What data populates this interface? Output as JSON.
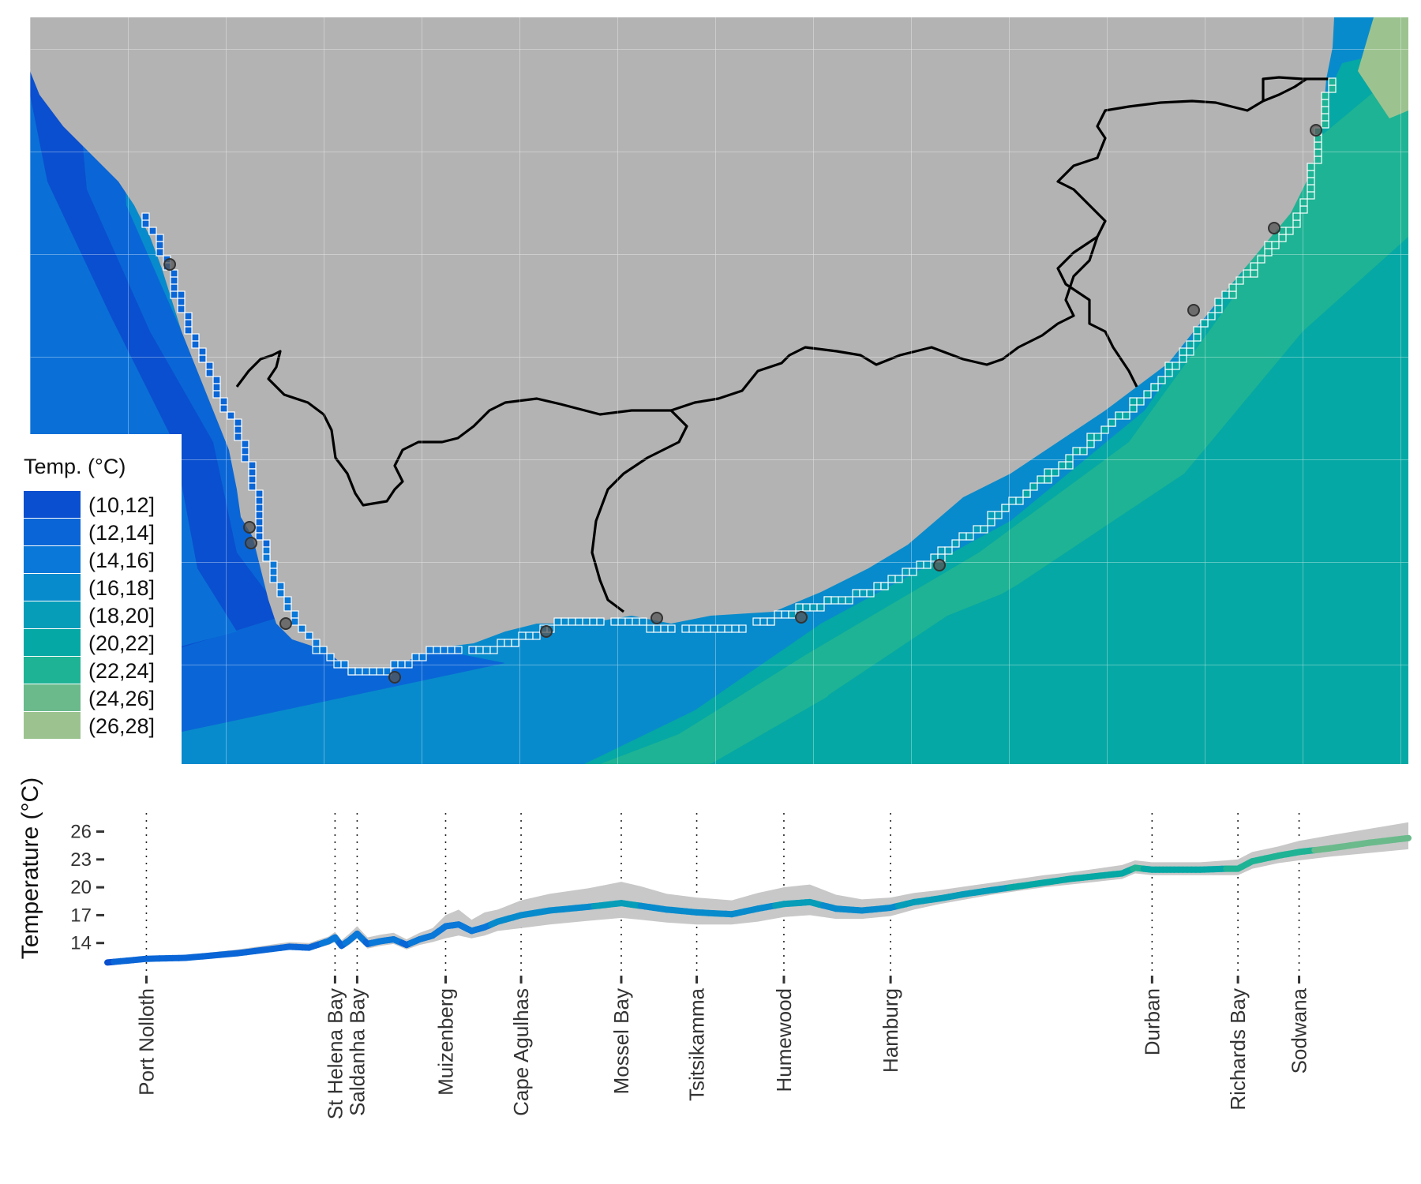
{
  "map": {
    "legend": {
      "title": "Temp. (°C)",
      "bins": [
        {
          "label": "(10,12]",
          "color": "#0a4fcf"
        },
        {
          "label": "(12,14]",
          "color": "#0a66d6"
        },
        {
          "label": "(14,16]",
          "color": "#0a78d8"
        },
        {
          "label": "(16,18]",
          "color": "#088bcc"
        },
        {
          "label": "(18,20]",
          "color": "#069db8"
        },
        {
          "label": "(20,22]",
          "color": "#05a8a4"
        },
        {
          "label": "(22,24]",
          "color": "#1eb394"
        },
        {
          "label": "(24,26]",
          "color": "#6aba8c"
        },
        {
          "label": "(26,28]",
          "color": "#9cc38f"
        }
      ]
    },
    "land_color": "#b3b3b3",
    "border_color": "#000000",
    "site_marker_color": "#555555"
  },
  "chart_data": {
    "type": "line",
    "ylabel": "Temperature (°C)",
    "yticks": [
      14,
      17,
      20,
      23,
      26
    ],
    "ylim": [
      11.0,
      28.0
    ],
    "xlim": [
      0,
      100
    ],
    "locations": [
      {
        "name": "Port Nolloth",
        "x": 3.0
      },
      {
        "name": "St Helena Bay",
        "x": 17.5
      },
      {
        "name": "Saldanha Bay",
        "x": 19.2
      },
      {
        "name": "Muizenberg",
        "x": 26.0
      },
      {
        "name": "Cape Agulhas",
        "x": 31.8
      },
      {
        "name": "Mossel Bay",
        "x": 39.5
      },
      {
        "name": "Tsitsikamma",
        "x": 45.3
      },
      {
        "name": "Humewood",
        "x": 52.0
      },
      {
        "name": "Hamburg",
        "x": 60.2
      },
      {
        "name": "Durban",
        "x": 80.3
      },
      {
        "name": "Richards Bay",
        "x": 86.9
      },
      {
        "name": "Sodwana",
        "x": 91.6
      }
    ],
    "series": [
      {
        "x": [
          0,
          3,
          6,
          10,
          14,
          15.5,
          17,
          17.5,
          18,
          18.6,
          19.2,
          20,
          21,
          22,
          23,
          24,
          25,
          26,
          27,
          28,
          29,
          30,
          31.8,
          34,
          37,
          39.5,
          41,
          43,
          45.3,
          48,
          50,
          52,
          54,
          56,
          58,
          60.2,
          62,
          64,
          66,
          68,
          70,
          72,
          74,
          76,
          78,
          79,
          80.3,
          82,
          84,
          86,
          86.9,
          88,
          90,
          91.6,
          94,
          97,
          100
        ],
        "mean": [
          11.9,
          12.3,
          12.4,
          12.9,
          13.6,
          13.5,
          14.2,
          14.6,
          13.7,
          14.3,
          15.0,
          13.9,
          14.2,
          14.4,
          13.8,
          14.4,
          14.8,
          15.8,
          16.0,
          15.3,
          15.7,
          16.3,
          17.0,
          17.5,
          17.9,
          18.3,
          18.0,
          17.6,
          17.3,
          17.1,
          17.7,
          18.2,
          18.4,
          17.7,
          17.5,
          17.8,
          18.4,
          18.8,
          19.3,
          19.7,
          20.1,
          20.5,
          20.9,
          21.2,
          21.5,
          22.1,
          21.9,
          21.9,
          21.9,
          22.0,
          22.0,
          22.8,
          23.4,
          23.8,
          24.2,
          24.8,
          25.3
        ],
        "lower": [
          11.7,
          12.0,
          12.2,
          12.6,
          13.3,
          13.2,
          13.8,
          14.1,
          13.3,
          13.8,
          14.5,
          13.4,
          13.7,
          13.9,
          13.3,
          13.8,
          14.1,
          14.5,
          14.8,
          14.5,
          14.8,
          15.3,
          15.6,
          16.0,
          16.4,
          16.7,
          16.5,
          16.2,
          16.0,
          16.0,
          16.3,
          16.8,
          17.0,
          16.6,
          16.6,
          16.9,
          17.6,
          18.2,
          18.7,
          19.2,
          19.6,
          20.0,
          20.3,
          20.6,
          20.9,
          21.5,
          21.3,
          21.3,
          21.3,
          21.3,
          21.3,
          22.0,
          22.6,
          22.9,
          23.3,
          23.7,
          24.1
        ],
        "upper": [
          12.2,
          12.6,
          12.7,
          13.3,
          14.1,
          14.0,
          14.7,
          15.2,
          14.3,
          15.0,
          15.8,
          14.6,
          14.9,
          15.1,
          14.4,
          15.1,
          15.6,
          17.0,
          17.6,
          16.5,
          17.3,
          17.6,
          18.6,
          19.3,
          19.9,
          20.6,
          20.1,
          19.3,
          18.9,
          18.6,
          19.4,
          20.0,
          20.3,
          19.2,
          18.7,
          18.9,
          19.4,
          19.7,
          20.1,
          20.5,
          20.9,
          21.3,
          21.6,
          22.0,
          22.4,
          22.9,
          22.7,
          22.7,
          22.7,
          22.9,
          23.0,
          23.8,
          24.4,
          25.0,
          25.6,
          26.3,
          27.0
        ]
      }
    ]
  }
}
